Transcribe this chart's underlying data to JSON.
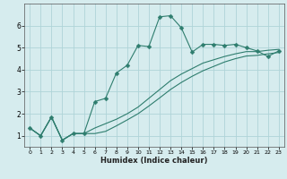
{
  "xlabel": "Humidex (Indice chaleur)",
  "ylabel": "",
  "bg_color": "#d6ecee",
  "grid_color": "#afd4d8",
  "line_color": "#2e7d6e",
  "xlim": [
    -0.5,
    23.5
  ],
  "ylim": [
    0.5,
    7.0
  ],
  "yticks": [
    1,
    2,
    3,
    4,
    5,
    6
  ],
  "xticks": [
    0,
    1,
    2,
    3,
    4,
    5,
    6,
    7,
    8,
    9,
    10,
    11,
    12,
    13,
    14,
    15,
    16,
    17,
    18,
    19,
    20,
    21,
    22,
    23
  ],
  "line1_x": [
    0,
    1,
    2,
    3,
    4,
    5,
    6,
    7,
    8,
    9,
    10,
    11,
    12,
    13,
    14,
    15,
    16,
    17,
    18,
    19,
    20,
    21,
    22,
    23
  ],
  "line1_y": [
    1.35,
    1.0,
    1.85,
    0.8,
    1.1,
    1.1,
    2.55,
    2.7,
    3.85,
    4.2,
    5.1,
    5.05,
    6.4,
    6.45,
    5.9,
    4.8,
    5.15,
    5.15,
    5.1,
    5.15,
    5.0,
    4.85,
    4.6,
    4.85
  ],
  "line2_x": [
    0,
    1,
    2,
    3,
    4,
    5,
    6,
    7,
    8,
    9,
    10,
    11,
    12,
    13,
    14,
    15,
    16,
    17,
    18,
    19,
    20,
    21,
    22,
    23
  ],
  "line2_y": [
    1.35,
    1.0,
    1.85,
    0.8,
    1.1,
    1.1,
    1.35,
    1.55,
    1.75,
    2.0,
    2.3,
    2.7,
    3.1,
    3.5,
    3.8,
    4.05,
    4.3,
    4.45,
    4.6,
    4.72,
    4.82,
    4.82,
    4.88,
    4.92
  ],
  "line3_x": [
    0,
    1,
    2,
    3,
    4,
    5,
    6,
    7,
    8,
    9,
    10,
    11,
    12,
    13,
    14,
    15,
    16,
    17,
    18,
    19,
    20,
    21,
    22,
    23
  ],
  "line3_y": [
    1.35,
    1.0,
    1.85,
    0.8,
    1.1,
    1.1,
    1.1,
    1.2,
    1.45,
    1.72,
    2.0,
    2.35,
    2.72,
    3.1,
    3.42,
    3.7,
    3.95,
    4.15,
    4.35,
    4.5,
    4.62,
    4.65,
    4.72,
    4.78
  ]
}
